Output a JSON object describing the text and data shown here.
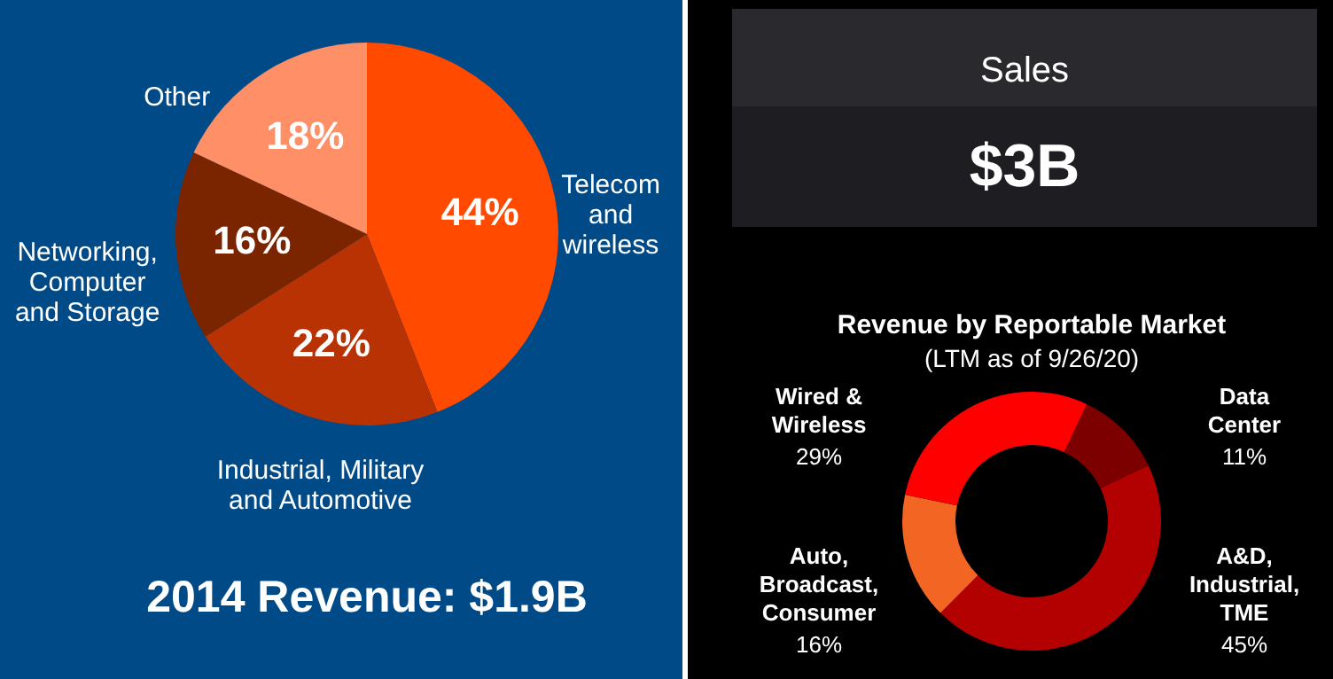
{
  "chart_data": [
    {
      "type": "pie",
      "title": "2014 Revenue: $1.9B",
      "categories": [
        "Telecom and wireless",
        "Industrial, Military and Automotive",
        "Networking, Computer and Storage",
        "Other"
      ],
      "values": [
        44,
        22,
        16,
        18
      ],
      "colors": [
        "#ff4a00",
        "#b83204",
        "#7a2400",
        "#ff8f66"
      ],
      "value_labels": [
        "44%",
        "22%",
        "16%",
        "18%"
      ]
    },
    {
      "type": "other",
      "title": "Sales",
      "annotations": [
        "$3B"
      ]
    },
    {
      "type": "donut",
      "title": "Revenue by Reportable Market",
      "subtitle": "(LTM as of 9/26/20)",
      "categories": [
        "Data Center",
        "A&D, Industrial, TME",
        "Auto, Broadcast, Consumer",
        "Wired & Wireless"
      ],
      "values": [
        11,
        45,
        16,
        29
      ],
      "colors": [
        "#7d0000",
        "#b30000",
        "#f26522",
        "#ff0000"
      ],
      "value_labels": [
        "11%",
        "45%",
        "16%",
        "29%"
      ]
    }
  ]
}
